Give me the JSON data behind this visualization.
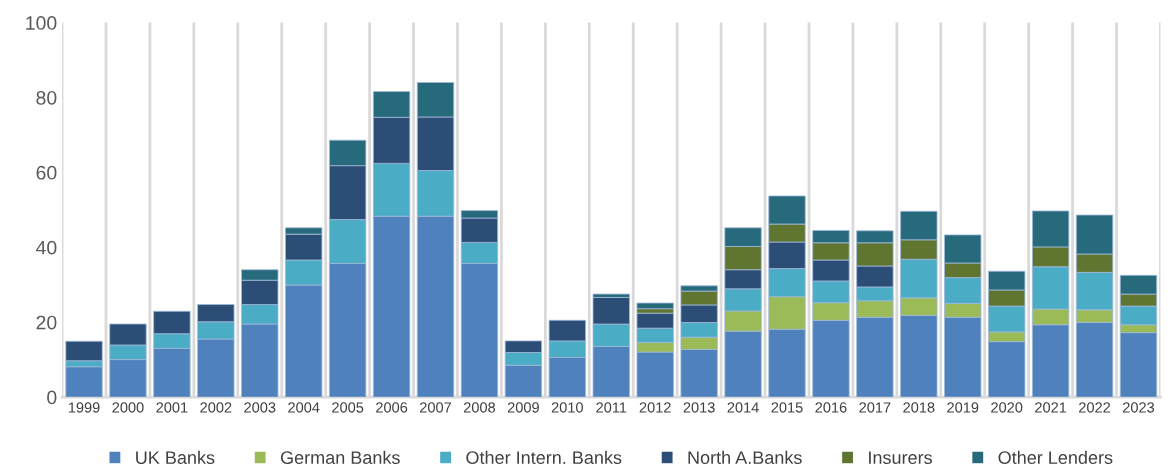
{
  "chart_data": {
    "type": "bar",
    "stacked": true,
    "categories": [
      "1999",
      "2000",
      "2001",
      "2002",
      "2003",
      "2004",
      "2005",
      "2006",
      "2007",
      "2008",
      "2009",
      "2010",
      "2011",
      "2012",
      "2013",
      "2014",
      "2015",
      "2016",
      "2017",
      "2018",
      "2019",
      "2020",
      "2021",
      "2022",
      "2023"
    ],
    "series": [
      {
        "name": "UK Banks",
        "color": "#4f81bd",
        "values": [
          8.1,
          10.0,
          13.0,
          15.5,
          19.5,
          29.9,
          35.7,
          48.3,
          48.3,
          35.7,
          8.5,
          10.6,
          13.5,
          12.0,
          12.7,
          17.6,
          18.1,
          20.5,
          21.3,
          21.8,
          21.3,
          14.8,
          19.3,
          19.9,
          17.2
        ]
      },
      {
        "name": "German Banks",
        "color": "#9bbb59",
        "values": [
          null,
          null,
          null,
          null,
          null,
          null,
          null,
          null,
          null,
          null,
          null,
          null,
          null,
          2.6,
          3.3,
          5.4,
          8.7,
          4.7,
          4.4,
          4.7,
          3.7,
          2.6,
          4.2,
          3.4,
          2.1
        ]
      },
      {
        "name": "Other Intern. Banks",
        "color": "#4bacc6",
        "values": [
          1.6,
          3.9,
          3.9,
          4.6,
          5.2,
          6.7,
          11.7,
          14.1,
          12.2,
          5.6,
          3.4,
          4.4,
          6.0,
          3.8,
          3.9,
          5.9,
          7.5,
          5.8,
          3.7,
          10.3,
          6.9,
          6.9,
          11.3,
          10.0,
          5.0
        ]
      },
      {
        "name": "North A.Banks",
        "color": "#2c4d75",
        "values": [
          5.2,
          5.6,
          6.0,
          4.6,
          6.5,
          6.9,
          14.4,
          12.3,
          14.3,
          6.5,
          3.1,
          5.5,
          7.1,
          4.0,
          4.7,
          5.1,
          7.1,
          5.6,
          5.6,
          null,
          null,
          null,
          null,
          null,
          null
        ]
      },
      {
        "name": "Insurers",
        "color": "#5f7530",
        "values": [
          null,
          null,
          null,
          null,
          null,
          null,
          null,
          null,
          null,
          null,
          null,
          null,
          null,
          1.2,
          3.7,
          6.2,
          4.8,
          4.6,
          6.2,
          5.2,
          3.9,
          4.3,
          5.3,
          4.9,
          3.2
        ]
      },
      {
        "name": "Other Lenders",
        "color": "#276a7c",
        "values": [
          null,
          null,
          null,
          null,
          2.8,
          1.7,
          6.8,
          6.9,
          9.2,
          2.0,
          null,
          null,
          0.9,
          1.5,
          1.4,
          5.0,
          7.5,
          3.3,
          3.2,
          7.6,
          7.5,
          5.0,
          9.6,
          10.4,
          5.0
        ]
      }
    ],
    "ylim": [
      0,
      100
    ],
    "yticks": [
      0,
      20,
      40,
      60,
      80,
      100
    ],
    "grid": "x",
    "legend": "bottom"
  }
}
